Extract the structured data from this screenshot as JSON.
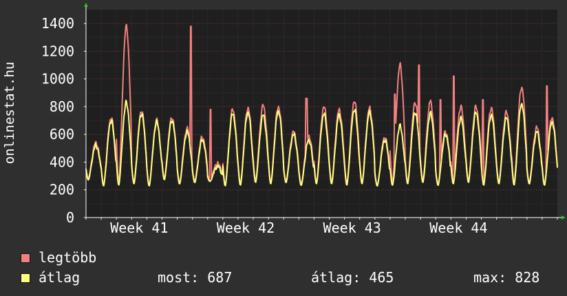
{
  "chart_data": {
    "type": "line",
    "ylabel": "onlinestat.hu",
    "ylim": [
      0,
      1500
    ],
    "yticks": [
      0,
      200,
      400,
      600,
      800,
      1000,
      1200,
      1400
    ],
    "week_labels": [
      "Week 41",
      "Week 42",
      "Week 43",
      "Week 44"
    ],
    "days": 31,
    "grid": true,
    "series": [
      {
        "name": "legtöbb",
        "color": "#f28080",
        "daily_peaks": [
          540,
          720,
          1380,
          770,
          700,
          720,
          640,
          580,
          390,
          780,
          790,
          810,
          800,
          620,
          590,
          800,
          780,
          840,
          790,
          580,
          1100,
          830,
          830,
          620,
          800,
          800,
          790,
          760,
          940,
          650,
          720
        ],
        "daily_lows": [
          280,
          230,
          240,
          250,
          230,
          280,
          250,
          260,
          270,
          230,
          240,
          260,
          250,
          260,
          240,
          250,
          250,
          240,
          250,
          230,
          240,
          250,
          260,
          240,
          250,
          260,
          240,
          250,
          240,
          250,
          240
        ],
        "spikes": [
          [
            6.9,
            1380
          ],
          [
            8.2,
            780
          ],
          [
            14.5,
            860
          ],
          [
            20.3,
            890
          ],
          [
            21.9,
            1100
          ],
          [
            22.6,
            830
          ],
          [
            23.3,
            850
          ],
          [
            24.2,
            1020
          ],
          [
            26.1,
            850
          ],
          [
            30.3,
            950
          ],
          [
            37.6,
            720
          ],
          [
            44.6,
            640
          ]
        ]
      },
      {
        "name": "átlag",
        "color": "#ffff80",
        "daily_peaks": [
          520,
          700,
          830,
          750,
          690,
          700,
          620,
          560,
          370,
          750,
          760,
          740,
          770,
          600,
          560,
          750,
          740,
          780,
          760,
          560,
          660,
          760,
          750,
          600,
          720,
          760,
          740,
          720,
          820,
          620,
          690
        ],
        "daily_lows": [
          270,
          225,
          230,
          240,
          225,
          270,
          240,
          250,
          260,
          225,
          230,
          250,
          240,
          250,
          230,
          240,
          240,
          230,
          240,
          225,
          230,
          240,
          250,
          230,
          240,
          250,
          230,
          240,
          230,
          240,
          230
        ]
      }
    ]
  },
  "legend": {
    "max_label": "legtöbb",
    "avg_label": "átlag",
    "max_color": "#f28080",
    "avg_color": "#ffff80"
  },
  "stats": {
    "now": "most: 687",
    "average": "átlag: 465",
    "maximum": "max: 828"
  }
}
